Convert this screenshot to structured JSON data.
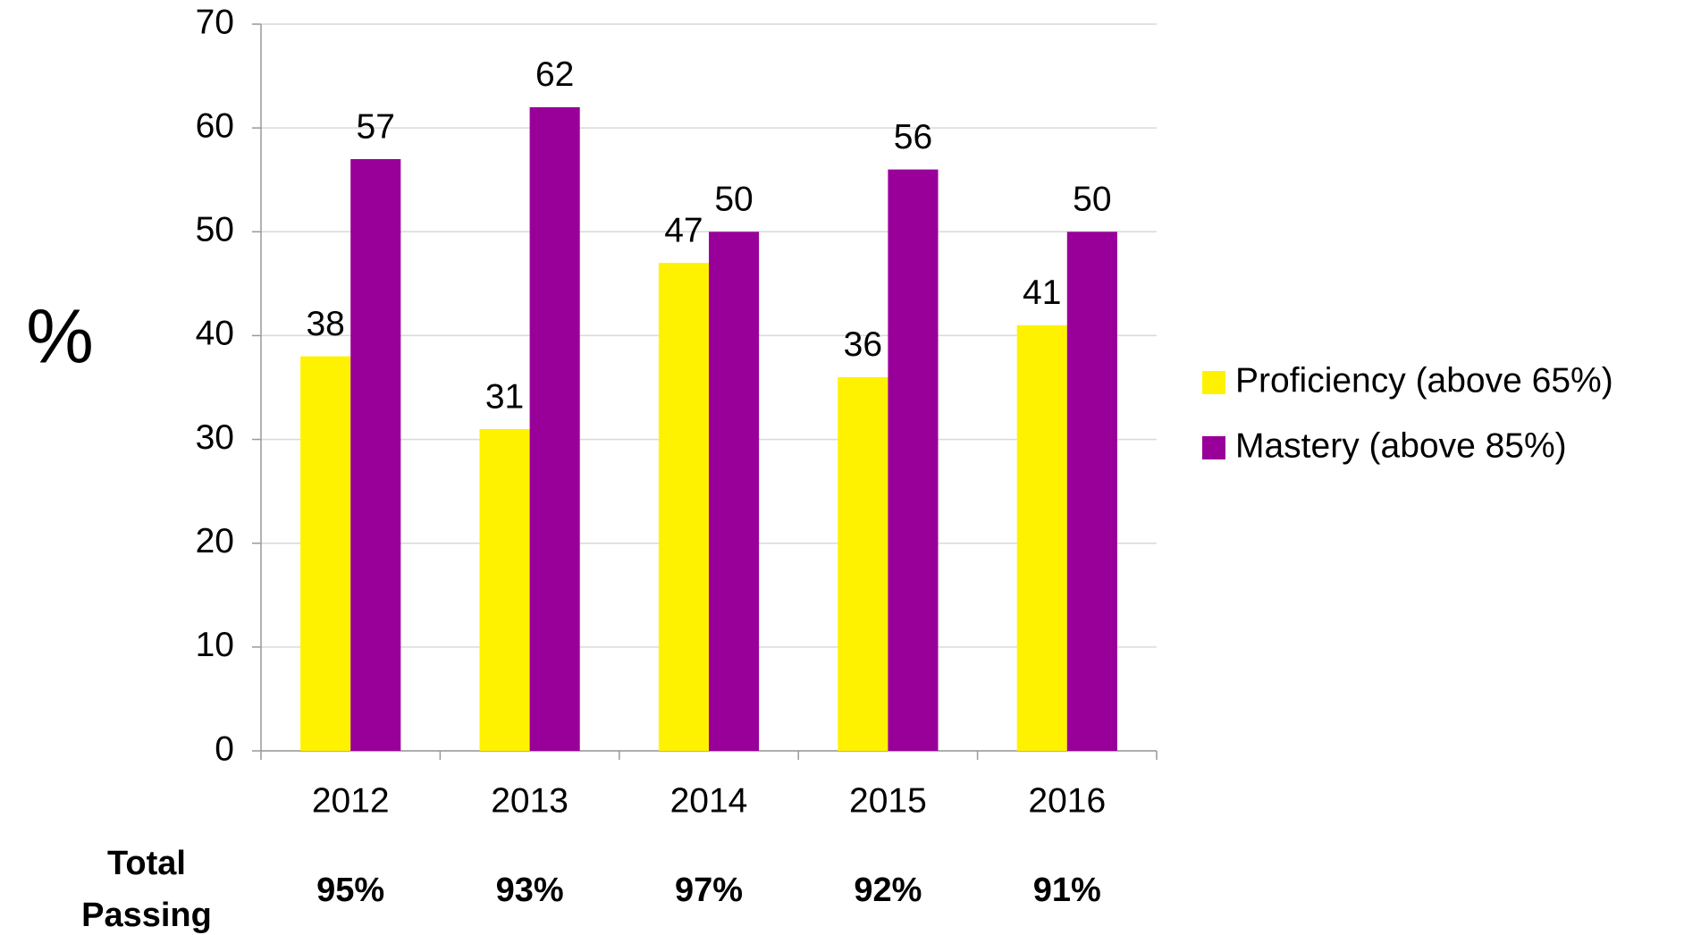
{
  "chart_data": {
    "type": "bar",
    "y_label": "%",
    "categories": [
      "2012",
      "2013",
      "2014",
      "2015",
      "2016"
    ],
    "series": [
      {
        "name": "Proficiency (above 65%)",
        "color": "#fff200",
        "values": [
          38,
          31,
          47,
          36,
          41
        ]
      },
      {
        "name": "Mastery (above 85%)",
        "color": "#990099",
        "values": [
          57,
          62,
          50,
          56,
          50
        ]
      }
    ],
    "ylim": [
      0,
      70
    ],
    "yticks": [
      0,
      10,
      20,
      30,
      40,
      50,
      60,
      70
    ],
    "grid": true,
    "legend": "right",
    "total_passing": {
      "label_lines": [
        "Total",
        "Passing"
      ],
      "values": [
        "95%",
        "93%",
        "97%",
        "92%",
        "91%"
      ]
    }
  }
}
